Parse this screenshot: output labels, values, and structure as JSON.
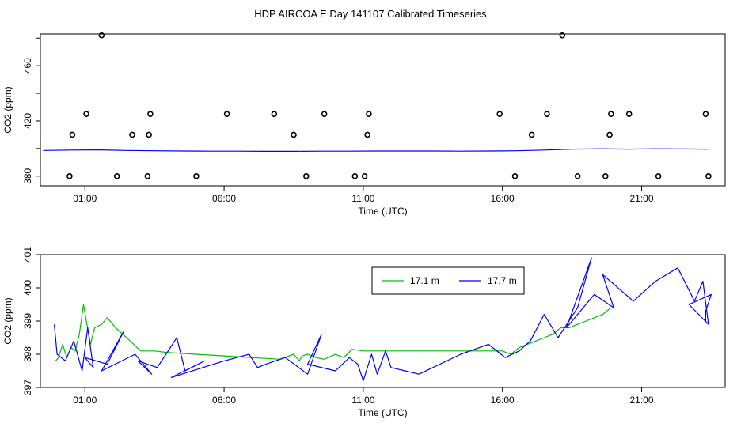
{
  "title": "HDP AIRCOA E  Day 141107  Calibrated Timeseries",
  "colors": {
    "green": "#00c000",
    "blue": "#0000ff",
    "axis": "#000000"
  },
  "chart_data": [
    {
      "type": "scatter",
      "xlabel": "Time (UTC)",
      "ylabel": "CO2 (ppm)",
      "xlim": [
        -0.6,
        24.0
      ],
      "ylim": [
        373,
        483
      ],
      "x_tick_labels": [
        "01:00",
        "06:00",
        "11:00",
        "16:00",
        "21:00"
      ],
      "x_tick_values": [
        1,
        6,
        11,
        16,
        21
      ],
      "y_ticks": [
        380,
        420,
        460
      ],
      "y_minor_ticks": [
        380,
        400,
        420,
        440,
        460,
        480
      ],
      "points": [
        [
          0.45,
          380
        ],
        [
          0.55,
          410
        ],
        [
          1.05,
          425
        ],
        [
          1.6,
          482
        ],
        [
          2.15,
          380
        ],
        [
          2.7,
          410
        ],
        [
          3.25,
          380
        ],
        [
          3.3,
          410
        ],
        [
          3.35,
          425
        ],
        [
          5.0,
          380
        ],
        [
          6.1,
          425
        ],
        [
          7.8,
          425
        ],
        [
          8.5,
          410
        ],
        [
          8.95,
          380
        ],
        [
          9.6,
          425
        ],
        [
          10.7,
          380
        ],
        [
          11.05,
          380
        ],
        [
          11.15,
          410
        ],
        [
          11.2,
          425
        ],
        [
          15.9,
          425
        ],
        [
          16.45,
          380
        ],
        [
          17.05,
          410
        ],
        [
          17.6,
          425
        ],
        [
          18.15,
          482
        ],
        [
          18.7,
          380
        ],
        [
          19.7,
          380
        ],
        [
          19.85,
          410
        ],
        [
          19.9,
          425
        ],
        [
          20.55,
          425
        ],
        [
          21.6,
          380
        ],
        [
          23.3,
          425
        ],
        [
          23.4,
          380
        ]
      ],
      "series": [
        {
          "x": [
            -0.5,
            0.5,
            1.5,
            2.5,
            3.5,
            4.5,
            5.5,
            6.5,
            7.5,
            8.5,
            9.5,
            10.5,
            11.5,
            12.5,
            13.5,
            14.5,
            15.5,
            16.5,
            17.5,
            18.5,
            19.5,
            20.5,
            21.5,
            22.5,
            23.4
          ],
          "y": [
            398.6,
            398.9,
            399.0,
            398.6,
            398.4,
            398.2,
            398.1,
            398.1,
            398.0,
            398.0,
            398.1,
            398.1,
            398.2,
            398.2,
            398.2,
            398.1,
            398.2,
            398.4,
            398.9,
            399.6,
            399.8,
            399.6,
            399.8,
            399.7,
            399.5
          ]
        }
      ]
    },
    {
      "type": "line",
      "xlabel": "Time (UTC)",
      "ylabel": "CO2 (ppm)",
      "xlim": [
        -0.6,
        24.0
      ],
      "ylim": [
        397.0,
        401.0
      ],
      "x_tick_labels": [
        "01:00",
        "06:00",
        "11:00",
        "16:00",
        "21:00"
      ],
      "x_tick_values": [
        1,
        6,
        11,
        16,
        21
      ],
      "y_ticks": [
        397,
        398,
        399,
        400,
        401
      ],
      "legend_position": "top-right",
      "series": [
        {
          "name": "17.1 m",
          "color": "#00c000",
          "x": [
            -0.05,
            0.05,
            0.2,
            0.35,
            0.5,
            0.65,
            0.8,
            0.95,
            1.05,
            1.2,
            1.35,
            1.6,
            1.8,
            2.1,
            2.5,
            3.0,
            3.5,
            4.0,
            5.0,
            6.0,
            7.0,
            8.0,
            8.5,
            8.7,
            8.8,
            9.0,
            9.3,
            9.6,
            10.0,
            10.3,
            10.6,
            11.0,
            11.5,
            12.0,
            13.0,
            14.0,
            15.0,
            16.0,
            16.3,
            16.6,
            16.9,
            17.2,
            17.5,
            17.8,
            18.1,
            18.4,
            18.7,
            19.0,
            19.3,
            19.6,
            19.9
          ],
          "y": [
            397.8,
            397.9,
            398.3,
            397.9,
            398.2,
            398.1,
            398.6,
            399.5,
            399.0,
            398.3,
            398.8,
            398.9,
            399.1,
            398.8,
            398.5,
            398.1,
            398.1,
            398.05,
            398.0,
            397.95,
            397.9,
            397.85,
            398.0,
            397.8,
            397.95,
            398.0,
            397.9,
            397.85,
            398.0,
            397.9,
            398.15,
            398.1,
            398.1,
            398.1,
            398.1,
            398.1,
            398.1,
            398.1,
            398.0,
            398.2,
            398.3,
            398.4,
            398.5,
            398.6,
            398.8,
            398.8,
            398.9,
            399.0,
            399.1,
            399.2,
            399.4
          ]
        },
        {
          "name": "17.7 m",
          "color": "#0000ff",
          "x": [
            -0.1,
            0.0,
            0.3,
            0.6,
            0.9,
            1.1,
            1.3,
            1.0,
            1.8,
            2.4,
            1.6,
            2.8,
            3.4,
            2.9,
            3.6,
            4.3,
            4.6,
            5.3,
            4.1,
            6.0,
            6.9,
            7.2,
            7.5,
            8.2,
            9.0,
            9.5,
            9.0,
            10.0,
            10.5,
            10.8,
            11.0,
            11.3,
            11.5,
            11.8,
            12.0,
            12.5,
            13.0,
            14.5,
            15.5,
            16.1,
            16.6,
            17.0,
            17.5,
            18.0,
            18.7,
            19.2,
            18.3,
            19.3,
            20.0,
            19.6,
            20.7,
            21.5,
            22.3,
            22.9,
            23.2,
            23.4,
            22.7,
            23.5,
            23.3,
            23.3
          ],
          "y": [
            398.9,
            398.0,
            397.8,
            398.4,
            397.5,
            398.8,
            397.6,
            397.9,
            397.7,
            398.7,
            397.5,
            398.0,
            397.4,
            397.8,
            397.6,
            398.5,
            397.5,
            397.8,
            397.3,
            397.8,
            398.0,
            397.6,
            397.7,
            397.9,
            397.4,
            398.6,
            397.7,
            397.5,
            397.9,
            397.7,
            397.2,
            398.0,
            397.4,
            398.1,
            397.6,
            397.5,
            397.4,
            398.0,
            398.3,
            397.9,
            398.1,
            398.4,
            399.2,
            398.5,
            399.4,
            400.9,
            398.8,
            399.8,
            399.4,
            400.4,
            399.6,
            400.2,
            400.6,
            399.6,
            400.2,
            398.9,
            399.5,
            399.8,
            399.3,
            399.0
          ]
        }
      ]
    }
  ]
}
